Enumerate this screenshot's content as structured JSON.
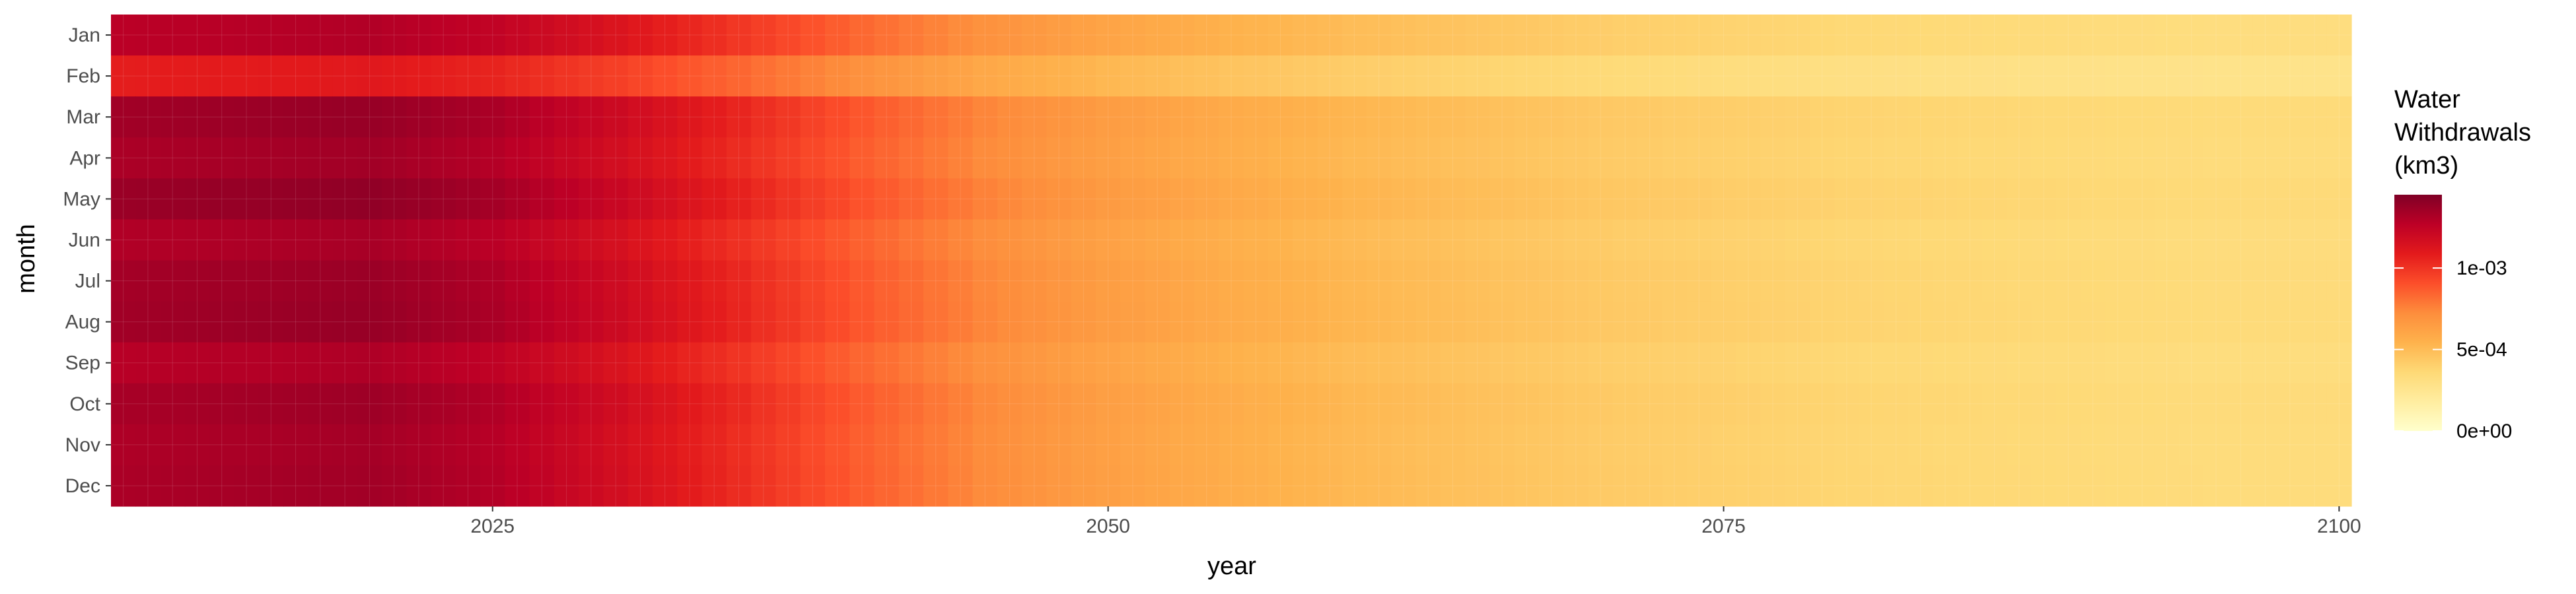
{
  "chart_data": {
    "type": "heatmap",
    "title": "",
    "xlabel": "year",
    "ylabel": "month",
    "x_range": [
      2010,
      2100
    ],
    "x_ticks": [
      "2025",
      "2050",
      "2075",
      "2100"
    ],
    "x_tick_values": [
      2025,
      2050,
      2075,
      2100
    ],
    "months": [
      "Jan",
      "Feb",
      "Mar",
      "Apr",
      "May",
      "Jun",
      "Jul",
      "Aug",
      "Sep",
      "Oct",
      "Nov",
      "Dec"
    ],
    "color_scale": {
      "low": 0,
      "high": 0.00145,
      "stops": [
        "#ffffcc",
        "#ffeda0",
        "#fed976",
        "#feb24c",
        "#fd8d3c",
        "#fc4e2a",
        "#e31a1c",
        "#bd0026",
        "#800026"
      ]
    },
    "legend": {
      "title_lines": [
        "Water",
        "Withdrawals",
        "(km3)"
      ],
      "labels": [
        "1e-03",
        "5e-04",
        "0e+00"
      ],
      "label_values": [
        0.001,
        0.0005,
        0
      ]
    },
    "month_base_values": [
      0.0013,
      0.0011,
      0.00138,
      0.00135,
      0.0014,
      0.00133,
      0.00137,
      0.00138,
      0.00131,
      0.00136,
      0.00134,
      0.00135
    ],
    "year_profile": [
      {
        "year": 2010,
        "factor": 0.98
      },
      {
        "year": 2020,
        "factor": 1.0
      },
      {
        "year": 2025,
        "factor": 0.96
      },
      {
        "year": 2030,
        "factor": 0.87
      },
      {
        "year": 2035,
        "factor": 0.76
      },
      {
        "year": 2040,
        "factor": 0.64
      },
      {
        "year": 2045,
        "factor": 0.54
      },
      {
        "year": 2050,
        "factor": 0.47
      },
      {
        "year": 2055,
        "factor": 0.42
      },
      {
        "year": 2060,
        "factor": 0.38
      },
      {
        "year": 2065,
        "factor": 0.35
      },
      {
        "year": 2070,
        "factor": 0.32
      },
      {
        "year": 2075,
        "factor": 0.3
      },
      {
        "year": 2080,
        "factor": 0.28
      },
      {
        "year": 2085,
        "factor": 0.27
      },
      {
        "year": 2090,
        "factor": 0.26
      },
      {
        "year": 2095,
        "factor": 0.25
      },
      {
        "year": 2100,
        "factor": 0.25
      }
    ],
    "grid": true,
    "legend_position": "right"
  }
}
